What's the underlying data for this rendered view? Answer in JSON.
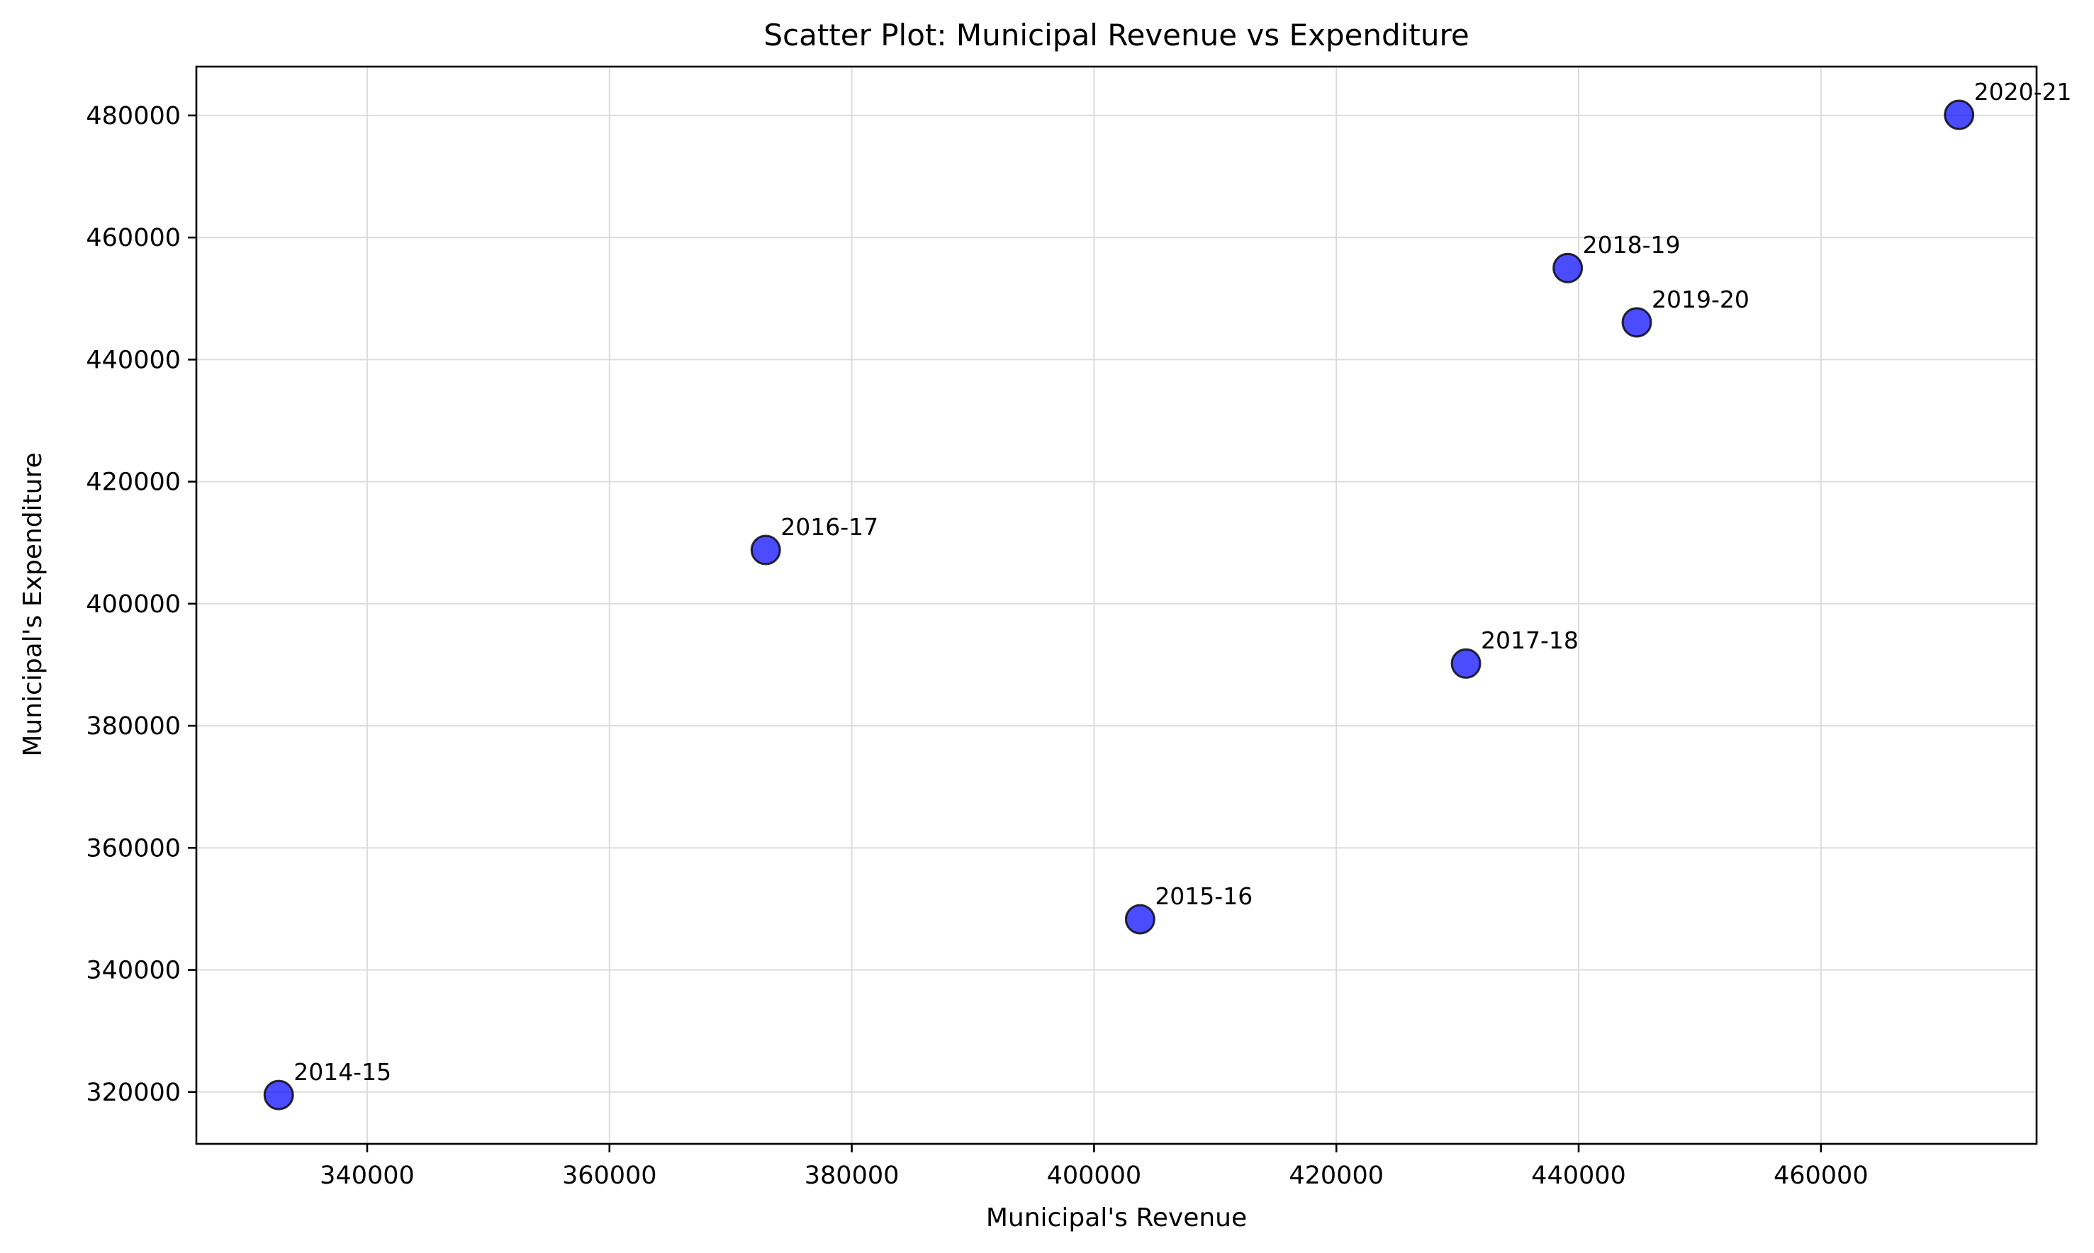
{
  "chart_data": {
    "type": "scatter",
    "title": "Scatter Plot: Municipal Revenue vs Expenditure",
    "xlabel": "Municipal's Revenue",
    "ylabel": "Municipal's Expenditure",
    "xlim": [
      325900,
      477800
    ],
    "ylim": [
      311500,
      488000
    ],
    "xticks": [
      340000,
      360000,
      380000,
      400000,
      420000,
      440000,
      460000
    ],
    "yticks": [
      320000,
      340000,
      360000,
      380000,
      400000,
      420000,
      440000,
      460000,
      480000
    ],
    "grid": true,
    "marker_color": "#0000ff",
    "marker_edge_color": "#000000",
    "marker_alpha": 0.7,
    "points": [
      {
        "label": "2014-15",
        "x": 332700,
        "y": 319500
      },
      {
        "label": "2015-16",
        "x": 403800,
        "y": 348300
      },
      {
        "label": "2016-17",
        "x": 372900,
        "y": 408800
      },
      {
        "label": "2017-18",
        "x": 430700,
        "y": 390200
      },
      {
        "label": "2018-19",
        "x": 439100,
        "y": 455000
      },
      {
        "label": "2019-20",
        "x": 444800,
        "y": 446100
      },
      {
        "label": "2020-21",
        "x": 471400,
        "y": 480100
      }
    ]
  }
}
